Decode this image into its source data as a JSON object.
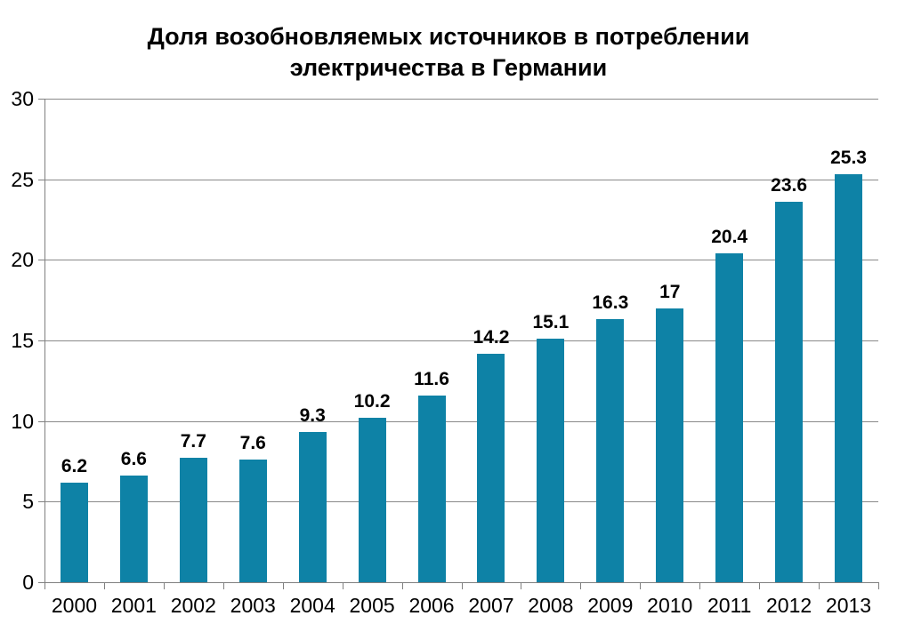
{
  "chart_data": {
    "type": "bar",
    "title": "Доля возобновляемых источников в потреблении электричества в Германии",
    "title_lines": [
      "Доля возобновляемых источников в потреблении",
      "электричества в Германии"
    ],
    "categories": [
      "2000",
      "2001",
      "2002",
      "2003",
      "2004",
      "2005",
      "2006",
      "2007",
      "2008",
      "2009",
      "2010",
      "2011",
      "2012",
      "2013"
    ],
    "values": [
      6.2,
      6.6,
      7.7,
      7.6,
      9.3,
      10.2,
      11.6,
      14.2,
      15.1,
      16.3,
      17,
      20.4,
      23.6,
      25.3
    ],
    "value_labels": [
      "6.2",
      "6.6",
      "7.7",
      "7.6",
      "9.3",
      "10.2",
      "11.6",
      "14.2",
      "15.1",
      "16.3",
      "17",
      "20.4",
      "23.6",
      "25.3"
    ],
    "xlabel": "",
    "ylabel": "",
    "ylim": [
      0,
      30
    ],
    "ytick_step": 5,
    "ytick_labels": [
      "0",
      "5",
      "10",
      "15",
      "20",
      "25",
      "30"
    ],
    "grid": true,
    "legend_position": "none",
    "colors": {
      "bar": "#0E82A6",
      "gridline": "#8A8A8A",
      "axis": "#808080",
      "text": "#000000",
      "background": "#FFFFFF"
    }
  }
}
